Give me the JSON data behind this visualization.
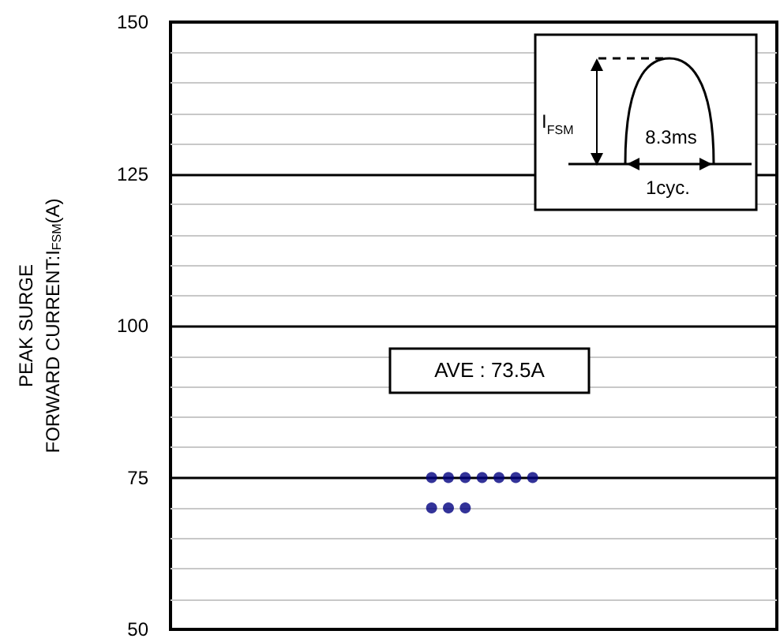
{
  "chart_data": {
    "type": "scatter",
    "ylabel": "PEAK SURGE\nFORWARD CURRENT:I$_{FSM}$(A)",
    "categories": [
      null,
      null,
      null,
      null,
      null,
      null,
      null,
      null,
      null,
      null,
      null,
      null,
      null,
      null,
      null,
      null,
      null,
      null,
      null,
      null,
      null,
      null,
      null,
      null,
      null,
      null,
      null,
      null,
      null,
      null,
      null,
      null,
      null,
      null,
      null,
      null
    ],
    "series": [
      {
        "color": "#000080",
        "values": [
          null,
          null,
          null,
          null,
          null,
          null,
          null,
          null,
          null,
          null,
          null,
          null,
          null,
          null,
          null,
          75,
          75,
          75,
          75,
          75,
          75,
          75,
          null,
          null,
          null,
          null,
          null,
          null,
          null,
          null,
          null,
          null,
          null,
          null,
          null,
          null
        ]
      },
      {
        "color": "#000080",
        "values": [
          null,
          null,
          null,
          null,
          null,
          null,
          null,
          null,
          null,
          null,
          null,
          null,
          null,
          null,
          null,
          70,
          70,
          70,
          null,
          null,
          null,
          null,
          null,
          null,
          null,
          null,
          null,
          null,
          null,
          null,
          null,
          null,
          null,
          null,
          null,
          null
        ]
      }
    ],
    "ylim": [
      50,
      150
    ],
    "yticks": [
      50,
      75,
      100,
      125,
      150
    ],
    "tick_labels": "y",
    "grid": "y",
    "marker": "circle",
    "annotations": [
      "AVE : 73.5A",
      "I$_{FSM}$",
      "8.3ms",
      "1cyc."
    ]
  }
}
